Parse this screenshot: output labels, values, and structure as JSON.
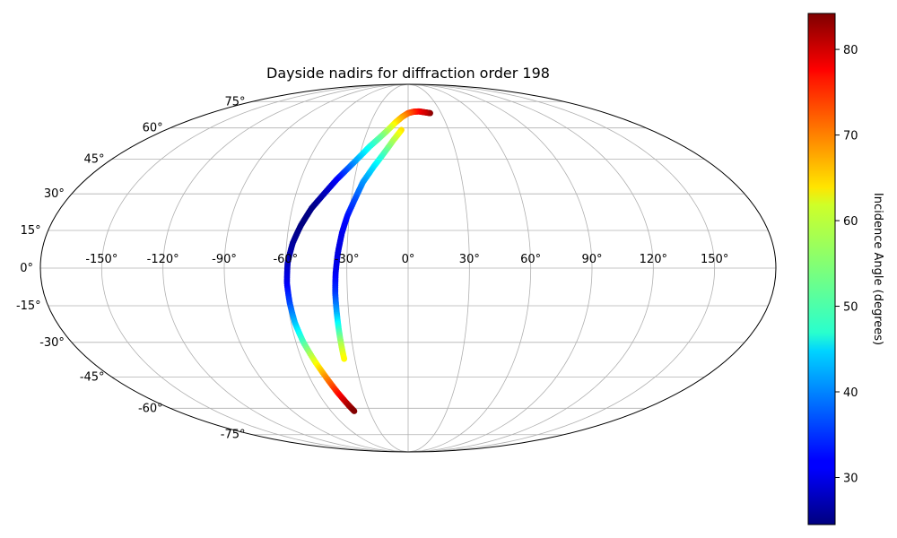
{
  "chart_data": {
    "type": "scatter",
    "projection": "mollweide",
    "title": "Dayside nadirs for diffraction order 198",
    "grid": true,
    "lon_ticks": [
      "-150°",
      "-120°",
      "-90°",
      "-60°",
      "-30°",
      "0°",
      "30°",
      "60°",
      "90°",
      "120°",
      "150°"
    ],
    "lat_ticks": [
      "75°",
      "60°",
      "45°",
      "30°",
      "15°",
      "0°",
      "-15°",
      "-30°",
      "-45°",
      "-60°",
      "-75°"
    ],
    "colorbar": {
      "label": "Incidence Angle (degrees)",
      "colormap": "jet",
      "range": [
        24.5,
        84.2
      ],
      "ticks": [
        "30",
        "40",
        "50",
        "60",
        "70",
        "80"
      ]
    },
    "series": [
      {
        "points": [
          {
            "lon": 20,
            "lat": 68,
            "incidence": 84
          },
          {
            "lon": 15,
            "lat": 68.5,
            "incidence": 80
          },
          {
            "lon": 10,
            "lat": 69,
            "incidence": 78
          },
          {
            "lon": 5,
            "lat": 68.8,
            "incidence": 75
          },
          {
            "lon": 0,
            "lat": 68,
            "incidence": 72
          },
          {
            "lon": -5,
            "lat": 66,
            "incidence": 68
          },
          {
            "lon": -10,
            "lat": 63,
            "incidence": 64
          },
          {
            "lon": -15,
            "lat": 59,
            "incidence": 58
          },
          {
            "lon": -20,
            "lat": 55,
            "incidence": 53
          },
          {
            "lon": -25,
            "lat": 51,
            "incidence": 49
          },
          {
            "lon": -30,
            "lat": 46,
            "incidence": 44
          },
          {
            "lon": -35,
            "lat": 41,
            "incidence": 38
          },
          {
            "lon": -40,
            "lat": 36,
            "incidence": 32
          },
          {
            "lon": -45,
            "lat": 30,
            "incidence": 28
          },
          {
            "lon": -50,
            "lat": 24,
            "incidence": 25
          },
          {
            "lon": -54,
            "lat": 17,
            "incidence": 24.5
          },
          {
            "lon": -57,
            "lat": 10,
            "incidence": 26
          },
          {
            "lon": -59,
            "lat": 2,
            "incidence": 28
          },
          {
            "lon": -59.5,
            "lat": -6,
            "incidence": 31
          },
          {
            "lon": -59,
            "lat": -14,
            "incidence": 36
          },
          {
            "lon": -58,
            "lat": -22,
            "incidence": 43
          },
          {
            "lon": -56,
            "lat": -30,
            "incidence": 51
          },
          {
            "lon": -53,
            "lat": -38,
            "incidence": 60
          },
          {
            "lon": -50,
            "lat": -45,
            "incidence": 68
          },
          {
            "lon": -47,
            "lat": -52,
            "incidence": 75
          },
          {
            "lon": -44,
            "lat": -58,
            "incidence": 81
          },
          {
            "lon": -42,
            "lat": -61.5,
            "incidence": 84
          }
        ]
      },
      {
        "points": [
          {
            "lon": -5,
            "lat": 59,
            "incidence": 64
          },
          {
            "lon": -10,
            "lat": 54,
            "incidence": 58
          },
          {
            "lon": -15,
            "lat": 48,
            "incidence": 52
          },
          {
            "lon": -20,
            "lat": 42,
            "incidence": 46
          },
          {
            "lon": -25,
            "lat": 35,
            "incidence": 41
          },
          {
            "lon": -28,
            "lat": 28,
            "incidence": 37
          },
          {
            "lon": -31,
            "lat": 21,
            "incidence": 33
          },
          {
            "lon": -33,
            "lat": 14,
            "incidence": 31
          },
          {
            "lon": -34.5,
            "lat": 6,
            "incidence": 30
          },
          {
            "lon": -35.5,
            "lat": -2,
            "incidence": 31
          },
          {
            "lon": -36,
            "lat": -10,
            "incidence": 35
          },
          {
            "lon": -36,
            "lat": -18,
            "incidence": 42
          },
          {
            "lon": -36,
            "lat": -25,
            "incidence": 50
          },
          {
            "lon": -36,
            "lat": -31,
            "incidence": 57
          },
          {
            "lon": -36,
            "lat": -37,
            "incidence": 62
          }
        ]
      }
    ]
  }
}
